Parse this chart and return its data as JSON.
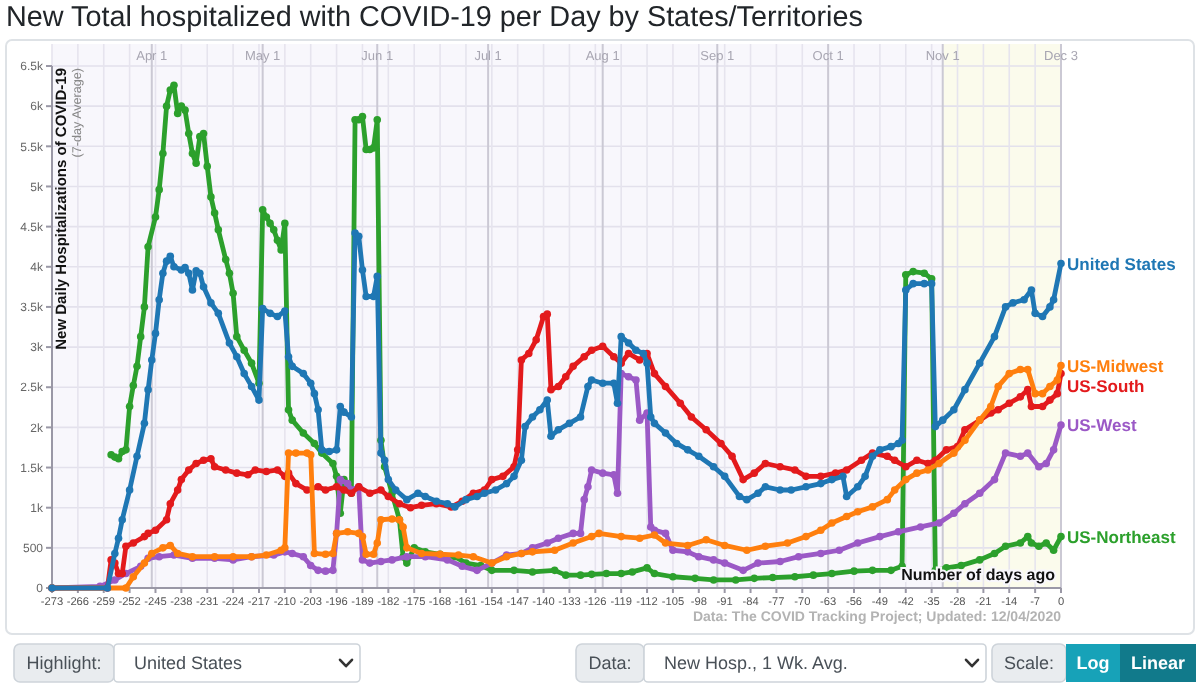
{
  "chart_data": {
    "type": "line",
    "title": "New Total hospitalized with COVID-19 per Day by States/Territories",
    "xlabel": "Number of days ago",
    "ylabel": "New Daily Hospitalizations of COVID-19\n(7-day Average)",
    "annotations": [
      "Data: The COVID Tracking Project; Updated: 12/04/2020",
      "Highlight:",
      "United States",
      "Data:",
      "New Hosp., 1 Wk. Avg.",
      "Scale:",
      "Log",
      "Linear"
    ],
    "xlim": [
      -273,
      0
    ],
    "xticks": [
      -273,
      -266,
      -259,
      -252,
      -245,
      -238,
      -231,
      -224,
      -217,
      -210,
      -203,
      -196,
      -189,
      -182,
      -175,
      -168,
      -161,
      -154,
      -147,
      -140,
      -133,
      -126,
      -119,
      -112,
      -105,
      -98,
      -91,
      -84,
      -77,
      -70,
      -63,
      -56,
      -49,
      -42,
      -35,
      -28,
      -21,
      -14,
      -7,
      0
    ],
    "x2lim": [
      "--03-05",
      "--12-03"
    ],
    "x2ticks": [
      {
        "value": "--04-01",
        "label": "Apr 1"
      },
      {
        "value": "--05-01",
        "label": "May 1"
      },
      {
        "value": "--06-01",
        "label": "Jun 1"
      },
      {
        "value": "--07-01",
        "label": "Jul 1"
      },
      {
        "value": "--08-01",
        "label": "Aug 1"
      },
      {
        "value": "--09-01",
        "label": "Sep 1"
      },
      {
        "value": "--10-01",
        "label": "Oct 1"
      },
      {
        "value": "--11-01",
        "label": "Nov 1"
      },
      {
        "value": "--12-03",
        "label": "Dec 3"
      }
    ],
    "ylim": [
      0,
      6500
    ],
    "yticks": [
      0,
      500,
      {
        "value": 1000,
        "label": "1k"
      },
      {
        "value": 1500,
        "label": "1.5k"
      },
      {
        "value": 2000,
        "label": "2k"
      },
      {
        "value": 2500,
        "label": "2.5k"
      },
      {
        "value": 3000,
        "label": "3k"
      },
      {
        "value": 3500,
        "label": "3.5k"
      },
      {
        "value": 4000,
        "label": "4k"
      },
      {
        "value": 4500,
        "label": "4.5k"
      },
      {
        "value": 5000,
        "label": "5k"
      },
      {
        "value": 5500,
        "label": "5.5k"
      },
      {
        "value": 6000,
        "label": "6k"
      },
      {
        "value": 6500,
        "label": "6.5k"
      }
    ],
    "grid": true,
    "marker": "circle",
    "line_style": "solid",
    "bands": [
      {
        "axis": "x",
        "from": -32,
        "to": 0,
        "color": "#fbfbec"
      }
    ],
    "series": [
      {
        "name": "US-Northeast",
        "color": "#2ca02c",
        "x": [
          -257,
          -256,
          -255,
          -254,
          -253,
          -252,
          -251,
          -250,
          -249,
          -248,
          -247,
          -245,
          -244,
          -243,
          -242,
          -241,
          -240,
          -239,
          -238,
          -237,
          -236,
          -235,
          -234,
          -233,
          -232,
          -231,
          -230,
          -229,
          -228,
          -226,
          -225,
          -224,
          -223,
          -221,
          -219,
          -217,
          -216,
          -215,
          -214,
          -213,
          -212,
          -211,
          -210,
          -209,
          -208,
          -205,
          -202,
          -200,
          -197,
          -196,
          -195,
          -194,
          -193,
          -192,
          -191,
          -190,
          -189,
          -188,
          -187,
          -186,
          -185,
          -184,
          -183,
          -181,
          -179,
          -178,
          -177,
          -175,
          -172,
          -168,
          -164,
          -161,
          -157,
          -154,
          -148,
          -143,
          -137,
          -134,
          -130,
          -127,
          -123,
          -119,
          -116,
          -112,
          -110,
          -105,
          -99,
          -94,
          -88,
          -83,
          -78,
          -72,
          -67,
          -62,
          -56,
          -51,
          -46,
          -43,
          -42,
          -40,
          -37,
          -35,
          -34,
          -31,
          -27,
          -22,
          -18,
          -15,
          -11,
          -9,
          -8,
          -6,
          -4,
          -2,
          0
        ],
        "values": [
          1660,
          1630,
          1610,
          1700,
          1720,
          2260,
          2520,
          2760,
          3130,
          3500,
          4250,
          4620,
          4960,
          5410,
          6000,
          6200,
          6260,
          5910,
          6000,
          5950,
          5660,
          5410,
          5290,
          5620,
          5660,
          5250,
          4870,
          4670,
          4460,
          4090,
          3920,
          3670,
          3130,
          2960,
          2800,
          2550,
          4710,
          4620,
          4540,
          4460,
          4330,
          4210,
          4540,
          2220,
          2090,
          1930,
          1800,
          1680,
          1550,
          1390,
          930,
          1350,
          1260,
          1180,
          5830,
          5830,
          5870,
          5460,
          5460,
          5480,
          5830,
          1840,
          1510,
          1180,
          850,
          390,
          310,
          500,
          450,
          420,
          390,
          310,
          280,
          220,
          220,
          200,
          220,
          160,
          160,
          170,
          180,
          180,
          200,
          250,
          180,
          140,
          120,
          100,
          100,
          120,
          130,
          140,
          160,
          180,
          210,
          220,
          220,
          270,
          3900,
          3940,
          3920,
          3850,
          220,
          250,
          280,
          350,
          430,
          520,
          560,
          640,
          560,
          520,
          560,
          470,
          640
        ]
      },
      {
        "name": "US-West",
        "color": "#9b59c6",
        "x": [
          -273,
          -260,
          -256,
          -253,
          -249,
          -247,
          -244,
          -240,
          -235,
          -229,
          -224,
          -219,
          -213,
          -210,
          -208,
          -205,
          -203,
          -201,
          -199,
          -197,
          -196,
          -195,
          -193,
          -192,
          -190,
          -189,
          -187,
          -184,
          -181,
          -177,
          -172,
          -166,
          -162,
          -158,
          -154,
          -150,
          -146,
          -143,
          -139,
          -136,
          -132,
          -130,
          -129,
          -128,
          -127,
          -124,
          -121,
          -120,
          -119,
          -117,
          -115,
          -114,
          -112,
          -111,
          -110,
          -107,
          -105,
          -101,
          -98,
          -94,
          -91,
          -86,
          -82,
          -76,
          -71,
          -65,
          -60,
          -55,
          -49,
          -44,
          -38,
          -33,
          -29,
          -26,
          -22,
          -18,
          -15,
          -11,
          -9,
          -6,
          -4,
          -2,
          0
        ],
        "values": [
          0,
          20,
          100,
          180,
          270,
          370,
          390,
          410,
          370,
          370,
          350,
          390,
          410,
          450,
          430,
          390,
          280,
          220,
          210,
          220,
          680,
          1350,
          1300,
          1220,
          1260,
          350,
          310,
          330,
          350,
          390,
          390,
          350,
          270,
          220,
          310,
          410,
          430,
          500,
          560,
          620,
          680,
          680,
          1100,
          1260,
          1470,
          1430,
          1410,
          1180,
          2670,
          2630,
          2590,
          2090,
          2180,
          760,
          720,
          680,
          470,
          450,
          390,
          350,
          310,
          220,
          310,
          330,
          390,
          430,
          470,
          560,
          640,
          700,
          760,
          810,
          930,
          1050,
          1180,
          1350,
          1680,
          1640,
          1680,
          1510,
          1550,
          1720,
          2030
        ]
      },
      {
        "name": "US-South",
        "color": "#e31a1c",
        "x": [
          -273,
          -258,
          -257,
          -256,
          -255,
          -254,
          -253,
          -251,
          -248,
          -247,
          -245,
          -242,
          -241,
          -239,
          -238,
          -236,
          -234,
          -232,
          -230,
          -229,
          -226,
          -223,
          -220,
          -218,
          -215,
          -212,
          -210,
          -209,
          -207,
          -204,
          -201,
          -199,
          -196,
          -194,
          -192,
          -190,
          -187,
          -184,
          -182,
          -179,
          -176,
          -173,
          -169,
          -165,
          -162,
          -159,
          -156,
          -154,
          -151,
          -148,
          -147,
          -146,
          -144,
          -142,
          -140,
          -139,
          -138,
          -136,
          -134,
          -132,
          -129,
          -127,
          -124,
          -121,
          -119,
          -117,
          -114,
          -112,
          -110,
          -107,
          -103,
          -100,
          -96,
          -92,
          -89,
          -86,
          -83,
          -80,
          -76,
          -72,
          -69,
          -65,
          -61,
          -58,
          -54,
          -51,
          -47,
          -45,
          -42,
          -39,
          -36,
          -34,
          -31,
          -28,
          -26,
          -22,
          -19,
          -17,
          -14,
          -11,
          -9,
          -8,
          -5,
          -3,
          -1,
          0
        ],
        "values": [
          0,
          0,
          350,
          310,
          180,
          180,
          520,
          560,
          640,
          680,
          720,
          850,
          1050,
          1220,
          1350,
          1470,
          1550,
          1590,
          1610,
          1510,
          1470,
          1430,
          1410,
          1470,
          1450,
          1470,
          1390,
          1430,
          1300,
          1220,
          1260,
          1220,
          1260,
          1220,
          1180,
          1260,
          1180,
          1220,
          1140,
          1050,
          1000,
          1030,
          1050,
          1010,
          1080,
          1180,
          1220,
          1350,
          1390,
          1510,
          1720,
          2840,
          2920,
          3090,
          3380,
          3410,
          2470,
          2510,
          2630,
          2760,
          2880,
          2960,
          3010,
          2880,
          2800,
          2920,
          2840,
          2920,
          2670,
          2510,
          2300,
          2130,
          1970,
          1800,
          1640,
          1350,
          1430,
          1550,
          1510,
          1470,
          1390,
          1390,
          1430,
          1470,
          1590,
          1680,
          1640,
          1590,
          1510,
          1590,
          1550,
          1590,
          1720,
          1760,
          1970,
          2090,
          2180,
          2220,
          2300,
          2380,
          2470,
          2260,
          2260,
          2340,
          2420,
          2670
        ]
      },
      {
        "name": "US-Midwest",
        "color": "#ff7f0e",
        "x": [
          -273,
          -253,
          -251,
          -248,
          -246,
          -243,
          -241,
          -239,
          -235,
          -229,
          -224,
          -219,
          -215,
          -211,
          -210,
          -209,
          -207,
          -204,
          -203,
          -202,
          -199,
          -197,
          -196,
          -193,
          -190,
          -189,
          -188,
          -186,
          -185,
          -184,
          -181,
          -179,
          -178,
          -177,
          -173,
          -168,
          -163,
          -159,
          -154,
          -150,
          -146,
          -143,
          -137,
          -132,
          -127,
          -125,
          -119,
          -114,
          -110,
          -107,
          -101,
          -96,
          -91,
          -85,
          -80,
          -74,
          -69,
          -65,
          -62,
          -58,
          -55,
          -51,
          -47,
          -45,
          -42,
          -39,
          -36,
          -33,
          -29,
          -26,
          -22,
          -19,
          -17,
          -14,
          -11,
          -9,
          -7,
          -5,
          -3,
          -1,
          0
        ],
        "values": [
          0,
          0,
          140,
          310,
          430,
          500,
          530,
          430,
          390,
          390,
          390,
          390,
          410,
          470,
          500,
          1680,
          1680,
          1680,
          1660,
          430,
          420,
          430,
          680,
          700,
          680,
          640,
          420,
          420,
          560,
          850,
          860,
          850,
          760,
          500,
          430,
          420,
          410,
          390,
          310,
          390,
          430,
          450,
          470,
          560,
          640,
          680,
          640,
          620,
          660,
          560,
          530,
          600,
          530,
          470,
          520,
          560,
          640,
          720,
          810,
          890,
          950,
          1010,
          1100,
          1220,
          1350,
          1430,
          1470,
          1550,
          1680,
          1840,
          2090,
          2260,
          2510,
          2670,
          2720,
          2720,
          2420,
          2420,
          2510,
          2590,
          2770
        ]
      },
      {
        "name": "United States",
        "color": "#1f77b4",
        "x": [
          -273,
          -258,
          -256,
          -255,
          -254,
          -252,
          -250,
          -248,
          -247,
          -246,
          -245,
          -244,
          -243,
          -242,
          -241,
          -240,
          -238,
          -237,
          -236,
          -235,
          -234,
          -233,
          -232,
          -230,
          -228,
          -225,
          -223,
          -221,
          -219,
          -217,
          -216,
          -214,
          -212,
          -210,
          -209,
          -208,
          -205,
          -203,
          -202,
          -201,
          -200,
          -198,
          -196,
          -195,
          -194,
          -192,
          -191,
          -190,
          -189,
          -188,
          -186,
          -185,
          -184,
          -183,
          -182,
          -180,
          -177,
          -174,
          -172,
          -169,
          -166,
          -164,
          -161,
          -158,
          -156,
          -153,
          -150,
          -148,
          -146,
          -145,
          -143,
          -141,
          -139,
          -138,
          -136,
          -133,
          -130,
          -128,
          -127,
          -124,
          -121,
          -120,
          -119,
          -117,
          -115,
          -113,
          -112,
          -111,
          -110,
          -107,
          -104,
          -101,
          -98,
          -94,
          -91,
          -87,
          -85,
          -82,
          -80,
          -76,
          -73,
          -69,
          -65,
          -62,
          -59,
          -58,
          -55,
          -53,
          -51,
          -49,
          -46,
          -44,
          -43,
          -42,
          -40,
          -37,
          -35,
          -34,
          -32,
          -29,
          -26,
          -22,
          -18,
          -15,
          -13,
          -10,
          -8,
          -7,
          -5,
          -3,
          -2,
          0
        ],
        "values": [
          0,
          0,
          430,
          620,
          850,
          1220,
          1640,
          2050,
          2470,
          2840,
          3170,
          3590,
          3920,
          4070,
          4130,
          4000,
          3960,
          3990,
          3920,
          3710,
          3950,
          3920,
          3750,
          3550,
          3420,
          3050,
          2880,
          2670,
          2510,
          2340,
          3480,
          3420,
          3380,
          3450,
          2880,
          2760,
          2670,
          2550,
          2420,
          2220,
          1720,
          1700,
          1720,
          2260,
          2190,
          2130,
          4420,
          4380,
          3960,
          3630,
          3630,
          3880,
          1680,
          1590,
          1350,
          1220,
          1100,
          1180,
          1140,
          1080,
          1050,
          1010,
          1100,
          1140,
          1180,
          1220,
          1300,
          1390,
          1590,
          2010,
          2130,
          2220,
          2340,
          1890,
          1970,
          2050,
          2130,
          2510,
          2590,
          2550,
          2550,
          2300,
          3130,
          3050,
          2960,
          2920,
          2800,
          2130,
          2050,
          1930,
          1800,
          1720,
          1640,
          1510,
          1390,
          1140,
          1100,
          1180,
          1260,
          1220,
          1220,
          1260,
          1300,
          1350,
          1390,
          1140,
          1260,
          1390,
          1640,
          1720,
          1760,
          1800,
          1840,
          3710,
          3790,
          3790,
          3790,
          2010,
          2090,
          2220,
          2470,
          2800,
          3130,
          3500,
          3550,
          3590,
          3710,
          3420,
          3380,
          3500,
          3590,
          4040
        ]
      }
    ]
  }
}
